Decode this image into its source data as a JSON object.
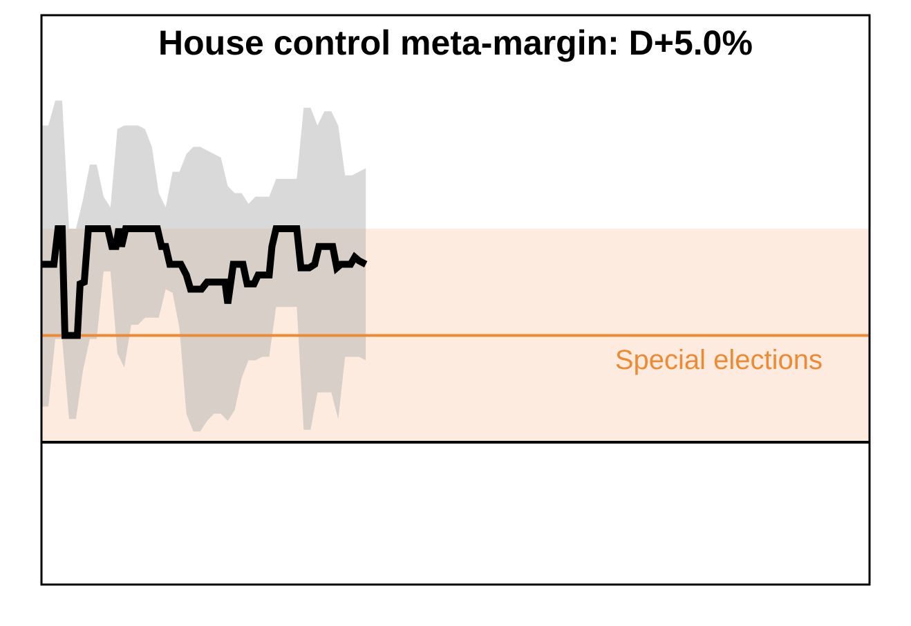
{
  "chart_data": {
    "type": "line",
    "title": "House control meta-margin: D+5.0%",
    "xlim": [
      0,
      240
    ],
    "ylim": [
      -4,
      12
    ],
    "line": {
      "color": "#000000",
      "x": [
        0,
        3.6,
        4.8,
        6,
        6.8,
        10.4,
        11.2,
        12.4,
        13.6,
        19.2,
        20.4,
        21.6,
        22.4,
        23.2,
        24.4,
        33.6,
        34.8,
        36,
        37.2,
        40.4,
        42,
        43.2,
        46.4,
        48,
        53.2,
        54,
        55.6,
        58.4,
        59.6,
        61.6,
        62.8,
        66,
        66.8,
        68,
        74,
        75.2,
        77.6,
        79.2,
        80.4,
        84.4,
        85.6,
        86.8,
        89.6,
        90.8,
        92,
        94
      ],
      "values": [
        5.0,
        5.0,
        6.0,
        6.0,
        3.0,
        3.0,
        4.45,
        4.5,
        6.0,
        6.0,
        5.5,
        5.5,
        6.0,
        5.5,
        6.0,
        6.0,
        5.5,
        5.5,
        5.0,
        5.0,
        4.7,
        4.3,
        4.3,
        4.5,
        4.5,
        3.9,
        5.0,
        5.0,
        4.45,
        4.45,
        4.7,
        4.7,
        5.5,
        6.0,
        6.0,
        4.9,
        4.9,
        5.0,
        5.5,
        5.5,
        4.9,
        5.0,
        5.0,
        5.2,
        5.1,
        5.0
      ]
    },
    "band": {
      "color": "#b3b3b3",
      "x": [
        0,
        2,
        4,
        6,
        8,
        10,
        12,
        14,
        16,
        18,
        20,
        22,
        24,
        26,
        28,
        30,
        32,
        34,
        36,
        38,
        40,
        42,
        44,
        46,
        48,
        50,
        52,
        54,
        56,
        58,
        60,
        62,
        64,
        66,
        68,
        70,
        72,
        74,
        76,
        78,
        80,
        82,
        84,
        86,
        88,
        90,
        92,
        94
      ],
      "upper": [
        8.9,
        8.9,
        9.6,
        9.6,
        6.0,
        6.0,
        6.8,
        7.8,
        7.8,
        6.9,
        6.6,
        8.8,
        8.9,
        8.9,
        8.9,
        8.8,
        8.3,
        7.0,
        6.6,
        7.6,
        7.6,
        8.1,
        8.3,
        8.3,
        8.2,
        8.1,
        8.0,
        7.2,
        7.0,
        7.0,
        6.7,
        6.9,
        6.9,
        6.9,
        7.4,
        7.4,
        7.4,
        7.4,
        9.4,
        9.4,
        8.9,
        9.3,
        9.3,
        8.9,
        7.5,
        7.5,
        7.6,
        7.7
      ],
      "lower": [
        1.0,
        1.0,
        2.9,
        2.9,
        0.65,
        0.65,
        2.0,
        2.9,
        2.9,
        4.8,
        4.8,
        2.5,
        2.1,
        3.3,
        3.3,
        3.5,
        3.5,
        3.5,
        4.3,
        4.2,
        3.2,
        0.8,
        0.3,
        0.3,
        0.6,
        0.8,
        0.8,
        0.6,
        0.9,
        1.8,
        2.3,
        2.3,
        2.4,
        2.4,
        3.8,
        3.8,
        3.8,
        3.8,
        0.35,
        0.35,
        1.4,
        1.4,
        1.4,
        0.65,
        2.4,
        2.4,
        2.4,
        2.3
      ]
    },
    "special_elections": {
      "label": "Special elections",
      "value": 3.0,
      "range": [
        0,
        6
      ],
      "color": "#ee8a33",
      "fill": "#fdebdf"
    },
    "zero_line": {
      "value": 0,
      "color": "#000000"
    }
  }
}
